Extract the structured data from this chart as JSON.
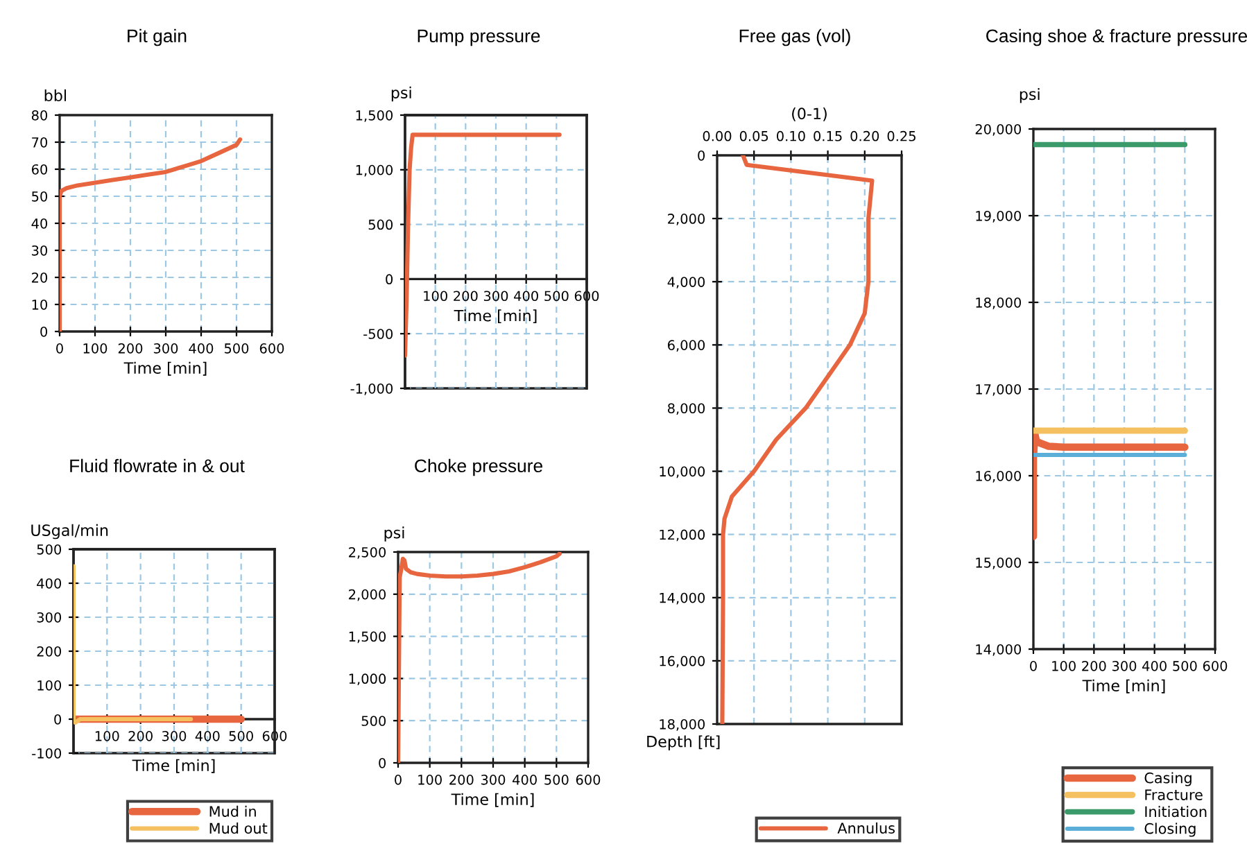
{
  "chart_data": [
    {
      "type": "line",
      "title": "Pit gain",
      "xlabel": "Time [min]",
      "ylabel": "bbl",
      "xlim": [
        0,
        600
      ],
      "xticks": [
        0,
        100,
        200,
        300,
        400,
        500,
        600
      ],
      "ylim": [
        0,
        80
      ],
      "yticks": [
        0,
        10,
        20,
        30,
        40,
        50,
        60,
        70,
        80
      ],
      "grid": true,
      "series": [
        {
          "color": "#e8663f",
          "x": [
            0,
            0,
            5,
            20,
            50,
            100,
            150,
            200,
            250,
            300,
            350,
            400,
            450,
            500,
            510
          ],
          "values": [
            0,
            50,
            52,
            53,
            54,
            55,
            56,
            57,
            58,
            59,
            61,
            63,
            66,
            69,
            71
          ]
        }
      ]
    },
    {
      "type": "line",
      "title": "Pump pressure",
      "xlabel": "Time [min]",
      "ylabel": "psi",
      "xlim": [
        0,
        600
      ],
      "xticks": [
        100,
        200,
        300,
        400,
        500,
        600
      ],
      "ylim": [
        -1000,
        1500
      ],
      "yticks": [
        {
          "value": -1000,
          "label": "-1,000"
        },
        -500,
        0,
        500,
        {
          "value": 1000,
          "label": "1,000"
        },
        {
          "value": 1500,
          "label": "1,500"
        }
      ],
      "grid": true,
      "series": [
        {
          "color": "#e8663f",
          "x": [
            0,
            5,
            10,
            15,
            20,
            25,
            30,
            100,
            300,
            510
          ],
          "values": [
            -700,
            -200,
            500,
            1000,
            1200,
            1320,
            1320,
            1320,
            1320,
            1320
          ]
        }
      ]
    },
    {
      "type": "line",
      "title": "Fluid flowrate in & out",
      "xlabel": "Time [min]",
      "ylabel": "USgal/min",
      "xlim": [
        0,
        600
      ],
      "xticks": [
        100,
        200,
        300,
        400,
        500,
        600
      ],
      "ylim": [
        -100,
        500
      ],
      "yticks": [
        -100,
        0,
        100,
        200,
        300,
        400,
        500
      ],
      "grid": true,
      "legend": "bottom",
      "series": [
        {
          "name": "Mud in",
          "color": "#e8663f",
          "x": [
            0,
            10,
            100,
            300,
            500
          ],
          "values": [
            0,
            0,
            0,
            0,
            0
          ]
        },
        {
          "name": "Mud out",
          "color": "#f5c060",
          "x": [
            0,
            0,
            5,
            20,
            200,
            350
          ],
          "values": [
            450,
            0,
            -10,
            0,
            0,
            0
          ]
        }
      ]
    },
    {
      "type": "line",
      "title": "Choke pressure",
      "xlabel": "Time [min]",
      "ylabel": "psi",
      "xlim": [
        0,
        600
      ],
      "xticks": [
        0,
        100,
        200,
        300,
        400,
        500,
        600
      ],
      "ylim": [
        0,
        2500
      ],
      "yticks": [
        0,
        500,
        {
          "value": 1000,
          "label": "1,000"
        },
        {
          "value": 1500,
          "label": "1,500"
        },
        {
          "value": 2000,
          "label": "2,000"
        },
        {
          "value": 2500,
          "label": "2,500"
        }
      ],
      "grid": true,
      "series": [
        {
          "color": "#e8663f",
          "x": [
            0,
            5,
            10,
            15,
            20,
            25,
            40,
            60,
            100,
            150,
            200,
            250,
            300,
            350,
            400,
            450,
            500,
            510
          ],
          "values": [
            0,
            2200,
            2300,
            2420,
            2400,
            2300,
            2260,
            2240,
            2220,
            2210,
            2210,
            2220,
            2240,
            2270,
            2320,
            2380,
            2450,
            2480
          ]
        }
      ]
    },
    {
      "type": "line",
      "title": "Free gas (vol)",
      "xlabel": "(0-1)",
      "ylabel": "Depth [ft]",
      "xlim": [
        0,
        0.25
      ],
      "xticks": [
        {
          "value": 0,
          "label": "0.00"
        },
        0.05,
        {
          "value": 0.1,
          "label": "0.10"
        },
        0.15,
        {
          "value": 0.2,
          "label": "0.20"
        },
        0.25
      ],
      "ylim": [
        18000,
        0
      ],
      "yticks": [
        0,
        {
          "value": 2000,
          "label": "2,000"
        },
        {
          "value": 4000,
          "label": "4,000"
        },
        {
          "value": 6000,
          "label": "6,000"
        },
        {
          "value": 8000,
          "label": "8,000"
        },
        {
          "value": 10000,
          "label": "10,000"
        },
        {
          "value": 12000,
          "label": "12,000"
        },
        {
          "value": 14000,
          "label": "14,000"
        },
        {
          "value": 16000,
          "label": "16,000"
        },
        {
          "value": 18000,
          "label": "18,000"
        }
      ],
      "grid": true,
      "legend": "bottom",
      "series": [
        {
          "name": "Annulus",
          "color": "#e8663f",
          "x": [
            0.035,
            0.04,
            0.21,
            0.205,
            0.205,
            0.2,
            0.18,
            0.15,
            0.12,
            0.08,
            0.05,
            0.02,
            0.01,
            0.008,
            0.008,
            0.007
          ],
          "values": [
            0,
            300,
            800,
            2000,
            4000,
            5000,
            6000,
            7000,
            8000,
            9000,
            10000,
            10800,
            11500,
            12000,
            14000,
            18000
          ]
        }
      ]
    },
    {
      "type": "line",
      "title": "Casing shoe & fracture pressure",
      "xlabel": "Time [min]",
      "ylabel": "psi",
      "xlim": [
        0,
        600
      ],
      "xticks": [
        0,
        100,
        200,
        300,
        400,
        500,
        600
      ],
      "ylim": [
        14000,
        20000
      ],
      "yticks": [
        {
          "value": 14000,
          "label": "14,000"
        },
        {
          "value": 15000,
          "label": "15,000"
        },
        {
          "value": 16000,
          "label": "16,000"
        },
        {
          "value": 17000,
          "label": "17,000"
        },
        {
          "value": 18000,
          "label": "18,000"
        },
        {
          "value": 19000,
          "label": "19,000"
        },
        {
          "value": 20000,
          "label": "20,000"
        }
      ],
      "grid": true,
      "legend": "bottom",
      "series": [
        {
          "name": "Casing",
          "color": "#e8663f",
          "x": [
            0,
            0,
            5,
            10,
            20,
            50,
            100,
            200,
            500
          ],
          "values": [
            15300,
            16200,
            16480,
            16400,
            16380,
            16340,
            16330,
            16330,
            16330
          ]
        },
        {
          "name": "Fracture",
          "color": "#f5c060",
          "x": [
            0,
            500
          ],
          "values": [
            16520,
            16520
          ]
        },
        {
          "name": "Initiation",
          "color": "#3a9a6a",
          "x": [
            0,
            500
          ],
          "values": [
            19820,
            19820
          ]
        },
        {
          "name": "Closing",
          "color": "#5aaed8",
          "x": [
            0,
            500
          ],
          "values": [
            16240,
            16240
          ]
        }
      ]
    }
  ]
}
